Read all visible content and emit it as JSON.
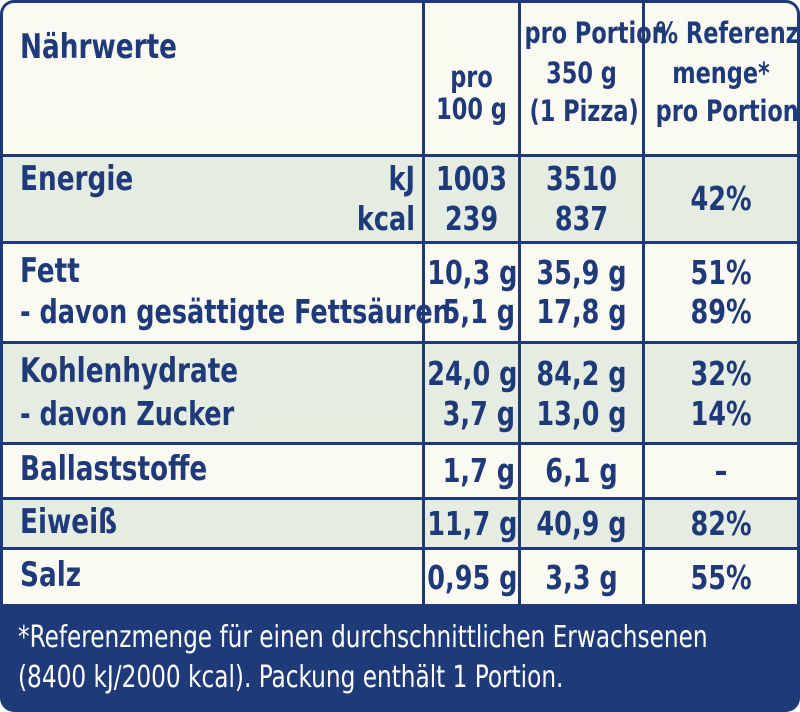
{
  "header": {
    "title": "Nährwerte",
    "col1": [
      "pro",
      "100 g"
    ],
    "col2": [
      "pro Portion",
      "350 g",
      "(1 Pizza)"
    ],
    "col3": [
      "% Referenz-",
      "menge*",
      "pro Portion"
    ]
  },
  "rows": {
    "energie": {
      "label": "Energie",
      "unit_kj": "kJ",
      "unit_kcal": "kcal",
      "per100_kj": "1003",
      "per100_kcal": "239",
      "portion_kj": "3510",
      "portion_kcal": "837",
      "ri": "42%"
    },
    "fett": {
      "label": "Fett",
      "per100": "10,3 g",
      "portion": "35,9 g",
      "ri": "51%",
      "sub_label": "- davon gesättigte Fettsäuren",
      "sub_per100": "5,1 g",
      "sub_portion": "17,8 g",
      "sub_ri": "89%"
    },
    "kh": {
      "label": "Kohlenhydrate",
      "per100": "24,0 g",
      "portion": "84,2 g",
      "ri": "32%",
      "sub_label": "- davon Zucker",
      "sub_per100": "3,7 g",
      "sub_portion": "13,0 g",
      "sub_ri": "14%"
    },
    "ballast": {
      "label": "Ballaststoffe",
      "per100": "1,7 g",
      "portion": "6,1 g",
      "ri": "–"
    },
    "eiweiss": {
      "label": "Eiweiß",
      "per100": "11,7 g",
      "portion": "40,9 g",
      "ri": "82%"
    },
    "salz": {
      "label": "Salz",
      "per100": "0,95 g",
      "portion": "3,3 g",
      "ri": "55%"
    }
  },
  "footer": {
    "line1": "*Referenzmenge für einen durchschnittlichen Erwachsenen",
    "line2": "(8400 kJ/2000 kcal). Packung enthält 1 Portion."
  },
  "colors": {
    "navy": "#1f3a78",
    "cream": "#fbfaf2",
    "band": "#e5ece2"
  }
}
